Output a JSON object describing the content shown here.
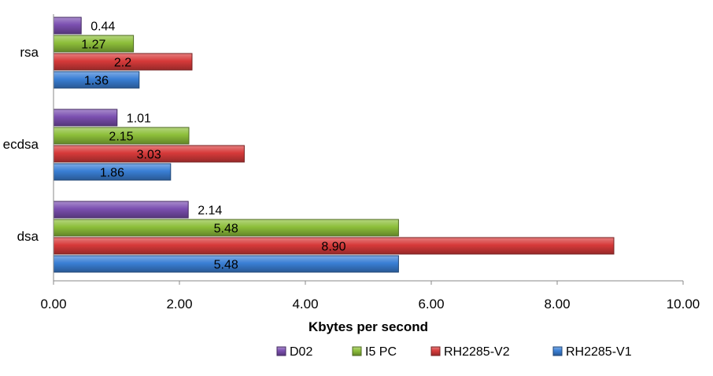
{
  "chart_data": {
    "type": "bar",
    "orientation": "horizontal",
    "categories": [
      "rsa",
      "ecdsa",
      "dsa"
    ],
    "series": [
      {
        "name": "D02",
        "values": [
          0.44,
          1.01,
          2.14
        ],
        "labels": [
          "0.44",
          "1.01",
          "2.14"
        ],
        "color": "#7B4FB0"
      },
      {
        "name": "I5 PC",
        "values": [
          1.27,
          2.15,
          5.48
        ],
        "labels": [
          "1.27",
          "2.15",
          "5.48"
        ],
        "color": "#8DBF3A"
      },
      {
        "name": "RH2285-V2",
        "values": [
          2.2,
          3.03,
          8.9
        ],
        "labels": [
          "2.2",
          "3.03",
          "8.90"
        ],
        "color": "#D73A3A"
      },
      {
        "name": "RH2285-V1",
        "values": [
          1.36,
          1.86,
          5.48
        ],
        "labels": [
          "1.36",
          "1.86",
          "5.48"
        ],
        "color": "#3A7FD5"
      }
    ],
    "xlabel": "Kbytes per second",
    "xlim": [
      0,
      10
    ],
    "xticks": [
      "0.00",
      "2.00",
      "4.00",
      "6.00",
      "8.00",
      "10.00"
    ],
    "legend_position": "bottom",
    "grid": false
  }
}
